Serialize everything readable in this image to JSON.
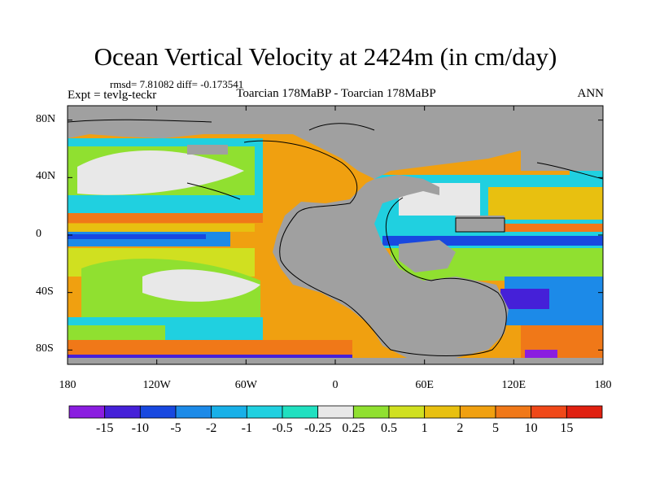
{
  "title": "Ocean Vertical Velocity at 2424m (in cm/day)",
  "stats": "rmsd= 7.81082 diff= -0.173541",
  "expt": "Expt = tevlg-teckr",
  "subtitle": "Toarcian 178MaBP - Toarcian 178MaBP",
  "season": "ANN",
  "axes": {
    "lat_labels": [
      "80N",
      "40N",
      "0",
      "40S",
      "80S"
    ],
    "lat_values": [
      80,
      40,
      0,
      -40,
      -80
    ],
    "lon_labels": [
      "180",
      "120W",
      "60W",
      "0",
      "60E",
      "120E",
      "180"
    ],
    "lon_values": [
      -180,
      -120,
      -60,
      0,
      60,
      120,
      180
    ]
  },
  "colorbar": {
    "labels": [
      "-15",
      "-10",
      "-5",
      "-2",
      "-1",
      "-0.5",
      "-0.25",
      "0.25",
      "0.5",
      "1",
      "2",
      "5",
      "10",
      "15"
    ],
    "colors": [
      "#8a1de0",
      "#4520d8",
      "#1848e0",
      "#1c8ae8",
      "#18b0e8",
      "#20d0e0",
      "#20e0c0",
      "#e8e8e8",
      "#90e030",
      "#d0e020",
      "#e8c010",
      "#f0a010",
      "#f07818",
      "#f04818",
      "#e02010"
    ]
  },
  "land_color": "#a0a0a0"
}
